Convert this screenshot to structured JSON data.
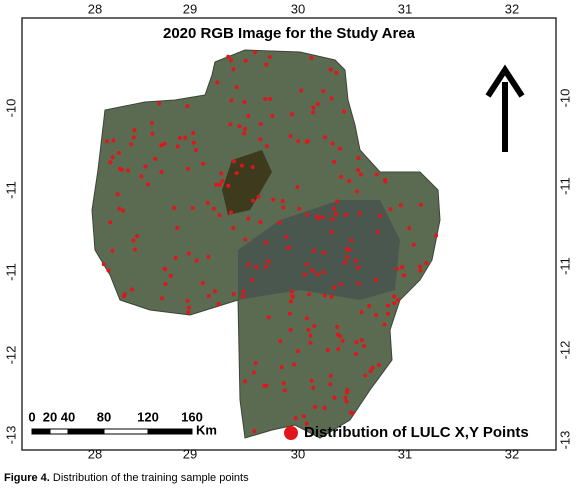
{
  "title": "2020 RGB Image for the Study Area",
  "top_ticks": [
    "28",
    "29",
    "30",
    "31",
    "32"
  ],
  "bottom_ticks": [
    "28",
    "29",
    "30",
    "31",
    "32"
  ],
  "left_ticks": [
    "-10",
    "-11",
    "-11",
    "-12",
    "-13"
  ],
  "right_ticks": [
    "-10",
    "-11",
    "-11",
    "-12",
    "-13"
  ],
  "scale_bar": {
    "labels": [
      "0",
      "20",
      "40",
      "80",
      "120",
      "160"
    ],
    "unit": "Km"
  },
  "legend": {
    "label": "Distribution of LULC X,Y Points"
  },
  "caption": {
    "label": "Figure 4.",
    "text": "Distribution of the training sample points"
  }
}
